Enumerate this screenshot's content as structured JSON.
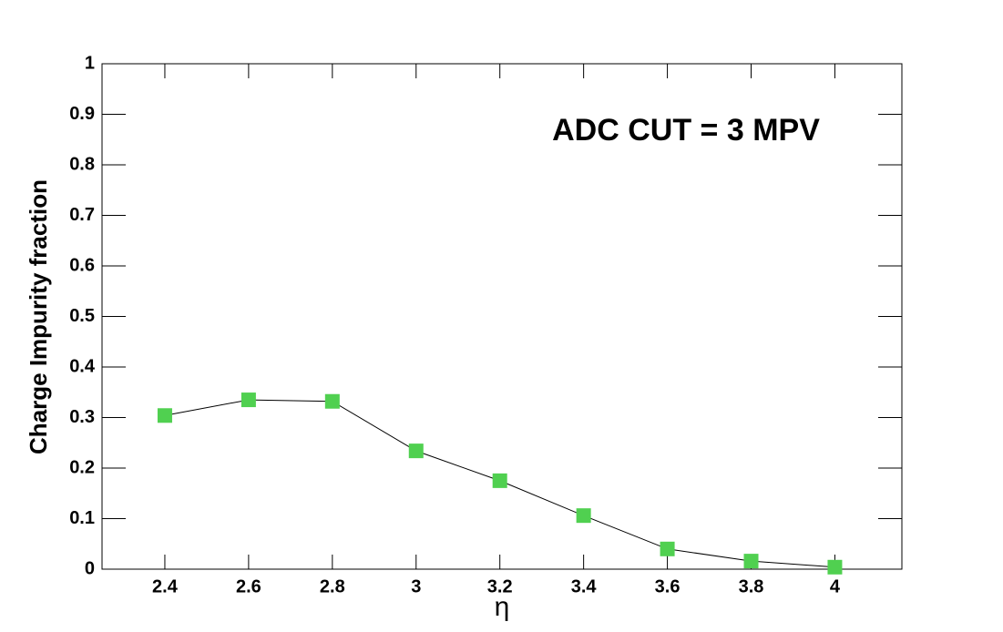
{
  "chart_data": {
    "type": "line",
    "annotation": "ADC CUT = 3 MPV",
    "x_label": "η",
    "y_label": "Charge Impurity fraction",
    "x": [
      2.4,
      2.6,
      2.8,
      3,
      3.2,
      3.4,
      3.6,
      3.8,
      4
    ],
    "series": [
      {
        "color": "#50d050",
        "values": [
          0.304,
          0.335,
          0.332,
          0.234,
          0.175,
          0.106,
          0.04,
          0.016,
          0.004
        ]
      }
    ],
    "line_color": "#000000",
    "xlim": [
      2.25,
      4.16
    ],
    "ylim": [
      0,
      1
    ],
    "xticks": [
      2.4,
      2.6,
      2.8,
      3,
      3.2,
      3.4,
      3.6,
      3.8,
      4
    ],
    "yticks": [
      0,
      0.1,
      0.2,
      0.3,
      0.4,
      0.5,
      0.6,
      0.7,
      0.8,
      0.9,
      1
    ],
    "grid": false
  }
}
